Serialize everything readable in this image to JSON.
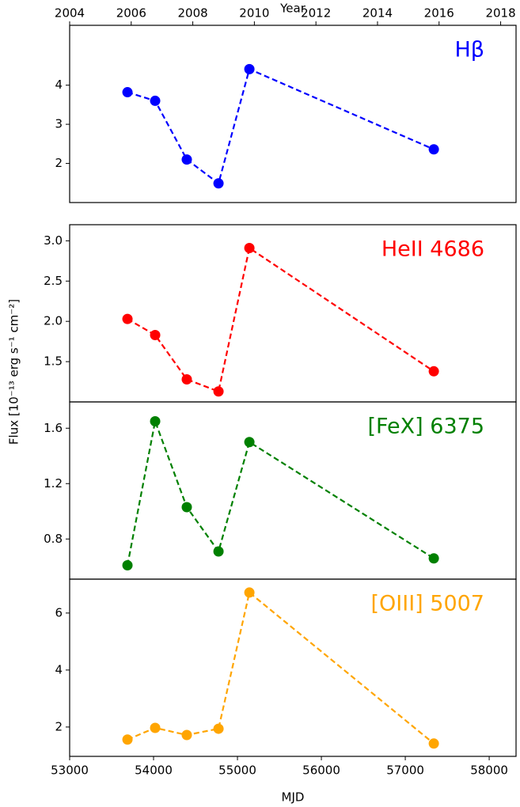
{
  "chart_data": [
    {
      "type": "line",
      "label": "Hβ",
      "color": "#0000ff",
      "ylabel": "Flux [10⁻¹³ erg s⁻¹ cm⁻²]",
      "x2label": "Year",
      "x2lim": [
        2004,
        2018.5
      ],
      "x2ticks": [
        2004,
        2006,
        2008,
        2010,
        2012,
        2014,
        2016,
        2018
      ],
      "x": [
        53689,
        54019,
        54396,
        54774,
        55142,
        57340
      ],
      "values": [
        3.82,
        3.6,
        2.1,
        1.49,
        4.41,
        2.36
      ],
      "ylim": [
        1.0,
        5.53
      ],
      "yticks": [
        2,
        3,
        4
      ]
    },
    {
      "type": "line",
      "label": "HeII 4686",
      "color": "#ff0000",
      "x": [
        53689,
        54019,
        54396,
        54774,
        55142,
        57340
      ],
      "values": [
        2.03,
        1.83,
        1.28,
        1.13,
        2.91,
        1.38
      ],
      "ylim": [
        1.0,
        3.2
      ],
      "yticks": [
        {
          "value": 1.5,
          "label": "1.5"
        },
        {
          "value": 2,
          "label": "2.0"
        },
        2.5,
        {
          "value": 3,
          "label": "3.0"
        }
      ]
    },
    {
      "type": "line",
      "label": "[FeX] 6375",
      "color": "#008000",
      "x": [
        53689,
        54019,
        54396,
        54774,
        55142,
        57340
      ],
      "values": [
        0.61,
        1.65,
        1.03,
        0.71,
        1.5,
        0.66
      ],
      "ylim": [
        0.51,
        1.79
      ],
      "yticks": [
        0.8,
        1.2,
        1.6
      ]
    },
    {
      "type": "line",
      "label": "[OIII] 5007",
      "color": "#ffa500",
      "xlabel": "MJD",
      "xlim": [
        53000,
        58320
      ],
      "xticks": [
        53000,
        54000,
        55000,
        56000,
        57000,
        58000
      ],
      "x": [
        53689,
        54019,
        54396,
        54774,
        55142,
        57340
      ],
      "values": [
        1.56,
        1.97,
        1.72,
        1.94,
        6.72,
        1.42
      ],
      "ylim": [
        0.97,
        7.19
      ],
      "yticks": [
        2,
        4,
        6
      ]
    }
  ]
}
